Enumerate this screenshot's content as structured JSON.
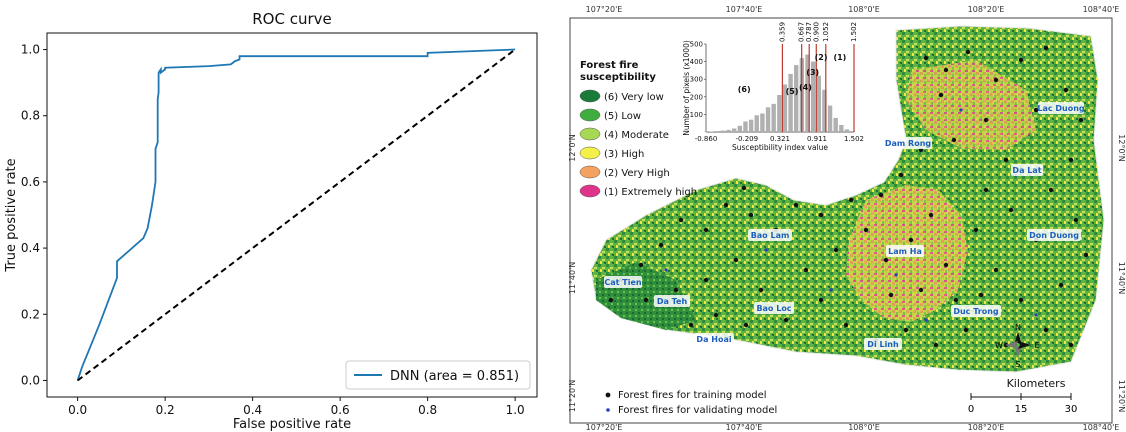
{
  "chart_data": [
    {
      "type": "line",
      "title": "ROC curve",
      "xlabel": "False positive rate",
      "ylabel": "True positive rate",
      "xlim": [
        -0.07,
        1.05
      ],
      "ylim": [
        -0.05,
        1.05
      ],
      "x_ticks": [
        "0.0",
        "0.2",
        "0.4",
        "0.6",
        "0.8",
        "1.0"
      ],
      "y_ticks": [
        "0.0",
        "0.2",
        "0.4",
        "0.6",
        "0.8",
        "1.0"
      ],
      "grid": false,
      "legend_position": "lower-right",
      "series": [
        {
          "name": "DNN (area = 0.851)",
          "color": "#1f77b4",
          "style": "solid",
          "x": [
            0,
            0.01,
            0.05,
            0.09,
            0.09,
            0.15,
            0.16,
            0.17,
            0.178,
            0.178,
            0.183,
            0.183,
            0.185,
            0.185,
            0.19,
            0.19,
            0.2,
            0.2,
            0.3,
            0.35,
            0.36,
            0.37,
            0.37,
            0.8,
            0.8,
            1.0
          ],
          "y": [
            0,
            0.04,
            0.17,
            0.31,
            0.36,
            0.43,
            0.46,
            0.53,
            0.6,
            0.7,
            0.72,
            0.85,
            0.87,
            0.93,
            0.94,
            0.93,
            0.94,
            0.945,
            0.95,
            0.955,
            0.965,
            0.97,
            0.98,
            0.98,
            0.99,
            1.0
          ]
        },
        {
          "name": "",
          "color": "#000000",
          "style": "dashed",
          "x": [
            0,
            1
          ],
          "y": [
            0,
            1
          ]
        }
      ]
    },
    {
      "type": "bar",
      "title": "",
      "xlabel": "Susceptibility index value",
      "ylabel": "Number of pixels (x1000)",
      "x_ticks": [
        "-0.860",
        "-0.209",
        "0.321",
        "0.911",
        "1.502"
      ],
      "y_ticks": [
        "0",
        "100",
        "200",
        "300",
        "400",
        "500"
      ],
      "xlim": [
        -0.86,
        1.502
      ],
      "ylim": [
        0,
        500
      ],
      "thresholds": [
        "0.359",
        "0.667",
        "0.787",
        "0.900",
        "1.052",
        "1.502"
      ],
      "class_labels": [
        "(6)",
        "(5)",
        "(4)",
        "(3)",
        "(2)",
        "(1)"
      ],
      "threshold_color": "#c0392b",
      "bar_color": "#b0b0b0",
      "bin_centers": [
        -0.86,
        -0.77,
        -0.68,
        -0.59,
        -0.5,
        -0.41,
        -0.32,
        -0.23,
        -0.14,
        -0.05,
        0.04,
        0.13,
        0.22,
        0.31,
        0.4,
        0.49,
        0.58,
        0.67,
        0.76,
        0.85,
        0.94,
        1.03,
        1.12,
        1.21,
        1.3,
        1.39,
        1.48
      ],
      "values": [
        2,
        3,
        5,
        8,
        12,
        20,
        35,
        60,
        70,
        95,
        105,
        140,
        160,
        210,
        270,
        330,
        380,
        420,
        440,
        400,
        320,
        240,
        150,
        80,
        40,
        15,
        5
      ]
    }
  ],
  "map": {
    "legend_title": "Forest fire susceptibility",
    "legend_title_line1": "Forest fire",
    "legend_title_line2": "susceptibility",
    "classes": [
      {
        "label": "(6) Very low",
        "color": "#1a7a3a"
      },
      {
        "label": "(5) Low",
        "color": "#3fae3f"
      },
      {
        "label": "(4) Moderate",
        "color": "#a6d854"
      },
      {
        "label": "(3) High",
        "color": "#f4f04a"
      },
      {
        "label": "(2) Very High",
        "color": "#f4a261"
      },
      {
        "label": "(1) Extremely high",
        "color": "#e0338a"
      }
    ],
    "top_lon_labels": [
      "107°20'E",
      "107°40'E",
      "108°0'E",
      "108°20'E",
      "108°40'E"
    ],
    "bottom_lon_labels": [
      "107°20'E",
      "107°40'E",
      "108°0'E",
      "108°20'E",
      "108°40'E"
    ],
    "left_lat_labels": [
      "12°0'N",
      "11°40'N",
      "11°20'N"
    ],
    "right_lat_labels": [
      "12°0'N",
      "11°40'N",
      "11°20'N"
    ],
    "place_names": [
      "Lac Duong",
      "Dam Rong",
      "Da Lat",
      "Lam Ha",
      "Bao Lam",
      "Don Duong",
      "Cat Tien",
      "Duc Trong",
      "Da Teh",
      "Bao Loc",
      "Da Hoai",
      "Di Linh"
    ],
    "compass": {
      "n": "N",
      "s": "S",
      "e": "E",
      "w": "W"
    },
    "scale_title": "Kilometers",
    "scale_ticks": [
      "0",
      "15",
      "30"
    ],
    "point_legend": [
      "Forest fires for training model",
      "Forest fires for validating model"
    ]
  }
}
